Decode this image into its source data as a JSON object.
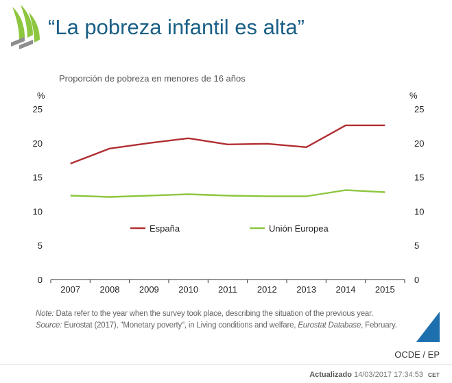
{
  "header": {
    "title": "“La pobreza infantil es alta”"
  },
  "chart_data": {
    "type": "line",
    "title": "“La pobreza infantil es alta”",
    "subtitle": "Proporción de pobreza en menores de 16 años",
    "y_unit_left": "%",
    "y_unit_right": "%",
    "ylim": [
      0,
      25
    ],
    "yticks": [
      0,
      5,
      10,
      15,
      20,
      25
    ],
    "grid": false,
    "legend_placement": "center",
    "categories": [
      "2007",
      "2008",
      "2009",
      "2010",
      "2011",
      "2012",
      "2013",
      "2014",
      "2015"
    ],
    "series": [
      {
        "name": "España",
        "color": "#b12e32",
        "values": [
          17.0,
          19.2,
          20.0,
          20.7,
          19.8,
          19.9,
          19.4,
          22.6,
          22.6
        ]
      },
      {
        "name": "Unión Europea",
        "color": "#8dc63f",
        "values": [
          12.3,
          12.1,
          12.3,
          12.5,
          12.3,
          12.2,
          12.2,
          13.1,
          12.8
        ]
      }
    ]
  },
  "notes": {
    "note_label": "Note:",
    "note_text": " Data refer to the year when the survey took place, describing the situation of the previous year.",
    "source_label": "Source:",
    "source_text_1": " Eurostat (2017), \"Monetary poverty\", in Living conditions and welfare, ",
    "source_italic": "Eurostat Database",
    "source_text_2": ", February."
  },
  "footer": {
    "credit": "OCDE / EP",
    "updated_label": "Actualizado",
    "updated_value": "14/03/2017 17:34:53",
    "timezone": "CET"
  },
  "colors": {
    "title": "#1a5f86",
    "logo_green": "#8dc63f",
    "logo_gray": "#8e8e8e",
    "corner_blue": "#1e6fae"
  }
}
